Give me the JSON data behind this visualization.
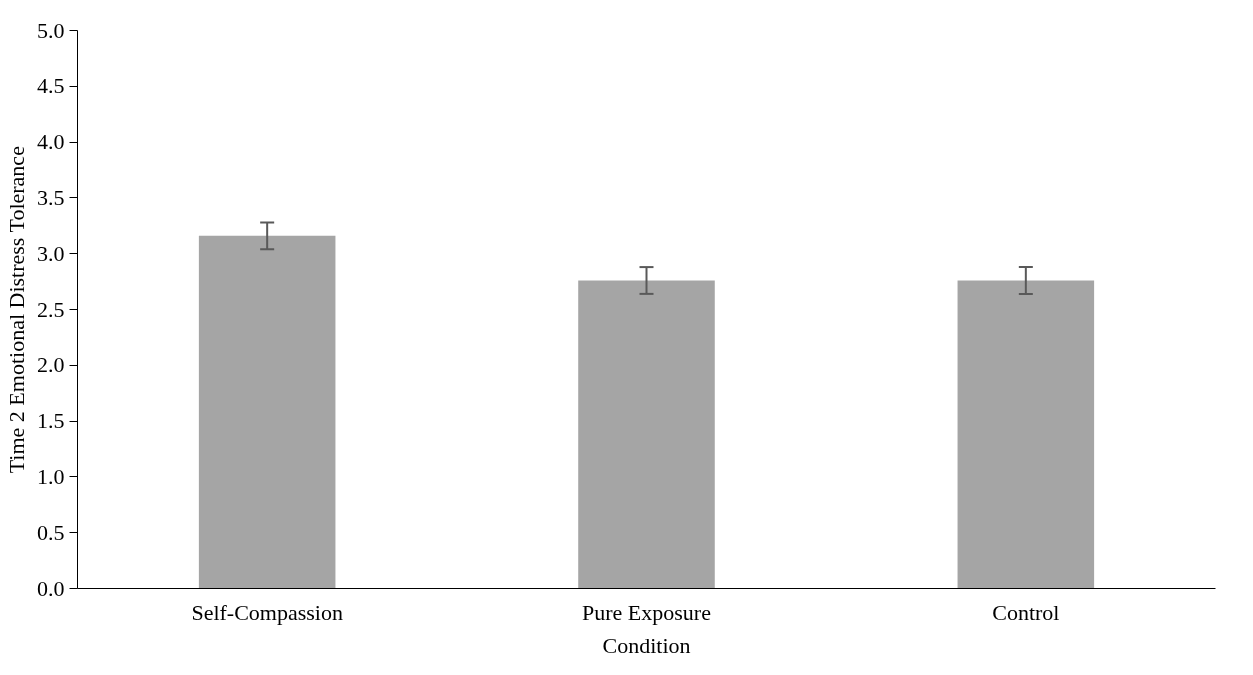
{
  "chart_data": {
    "type": "bar",
    "xlabel": "Condition",
    "ylabel": "Time 2 Emotional Distress Tolerance",
    "categories": [
      "Self-Compassion",
      "Pure Exposure",
      "Control"
    ],
    "values": [
      3.16,
      2.76,
      2.76
    ],
    "errors": [
      0.12,
      0.12,
      0.12
    ],
    "color": "#a5a5a5",
    "ylim": [
      0,
      5
    ],
    "yticks": [
      {
        "value": 0,
        "label": "0.0"
      },
      {
        "value": 0.5,
        "label": "0.5"
      },
      {
        "value": 1,
        "label": "1.0"
      },
      {
        "value": 1.5,
        "label": "1.5"
      },
      {
        "value": 2,
        "label": "2.0"
      },
      {
        "value": 2.5,
        "label": "2.5"
      },
      {
        "value": 3,
        "label": "3.0"
      },
      {
        "value": 3.5,
        "label": "3.5"
      },
      {
        "value": 4,
        "label": "4.0"
      },
      {
        "value": 4.5,
        "label": "4.5"
      },
      {
        "value": 5,
        "label": "5.0"
      }
    ],
    "grid": false
  }
}
